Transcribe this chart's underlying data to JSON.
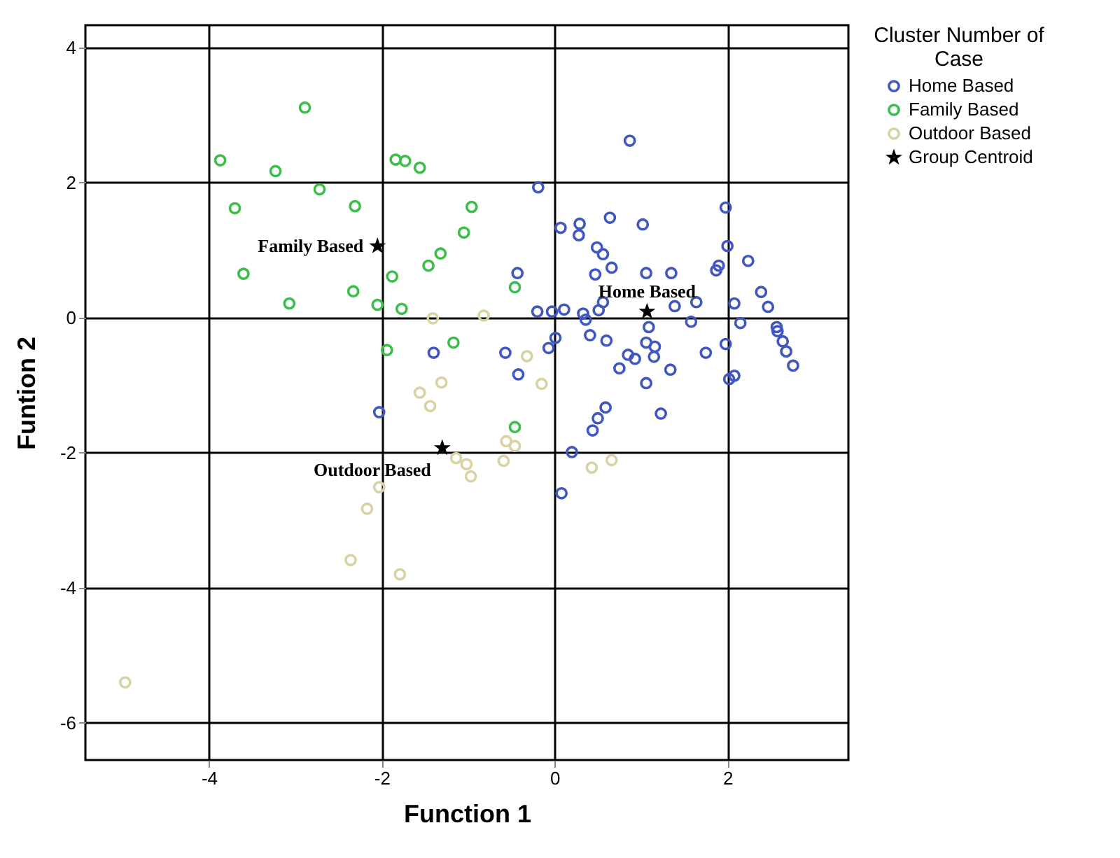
{
  "chart_data": {
    "type": "scatter",
    "xlabel": "Function 1",
    "ylabel": "Funtion 2",
    "legend_title": "Cluster Number of Case",
    "legend": "top right",
    "grid": true,
    "marker": "circle",
    "xlim": [
      -5.43,
      3.4
    ],
    "ylim": [
      -6.55,
      4.33
    ],
    "xticks": [
      -4,
      -2,
      0,
      2
    ],
    "yticks": [
      -6,
      -4,
      -2,
      0,
      2,
      4
    ],
    "series": [
      {
        "name": "Home Based",
        "color": "#4056c0",
        "x": [
          0.87,
          -0.19,
          1.98,
          0.07,
          0.29,
          0.28,
          0.64,
          1.02,
          0.49,
          0.56,
          0.66,
          0.47,
          2.0,
          1.9,
          1.87,
          2.24,
          1.06,
          1.35,
          2.39,
          2.47,
          1.39,
          1.64,
          2.08,
          -0.43,
          -0.2,
          -0.03,
          0.11,
          0.33,
          0.36,
          0.51,
          0.56,
          1.09,
          1.58,
          2.15,
          2.57,
          2.58,
          2.64,
          2.68,
          2.76,
          0.01,
          -0.07,
          0.41,
          0.6,
          1.06,
          1.16,
          1.15,
          0.85,
          0.93,
          0.75,
          1.34,
          1.75,
          1.98,
          1.06,
          2.02,
          2.08,
          0.59,
          0.5,
          0.44,
          1.23,
          -0.42,
          -0.57,
          -1.4,
          -2.03,
          0.2,
          0.08
        ],
        "values": [
          2.62,
          1.93,
          1.63,
          1.33,
          1.39,
          1.22,
          1.48,
          1.38,
          1.04,
          0.94,
          0.74,
          0.64,
          1.06,
          0.77,
          0.7,
          0.84,
          0.66,
          0.66,
          0.38,
          0.16,
          0.17,
          0.23,
          0.21,
          0.66,
          0.09,
          0.09,
          0.12,
          0.06,
          -0.03,
          0.11,
          0.23,
          -0.14,
          -0.06,
          -0.08,
          -0.14,
          -0.2,
          -0.35,
          -0.5,
          -0.71,
          -0.3,
          -0.45,
          -0.26,
          -0.34,
          -0.37,
          -0.43,
          -0.58,
          -0.55,
          -0.61,
          -0.75,
          -0.77,
          -0.52,
          -0.39,
          -0.97,
          -0.91,
          -0.86,
          -1.33,
          -1.49,
          -1.67,
          -1.42,
          -0.84,
          -0.52,
          -0.52,
          -1.4,
          -1.99,
          -2.6
        ]
      },
      {
        "name": "Family Based",
        "color": "#3cbf4a",
        "x": [
          -2.89,
          -3.87,
          -3.23,
          -1.84,
          -1.73,
          -1.56,
          -2.72,
          -3.7,
          -2.31,
          -0.96,
          -1.05,
          -1.32,
          -1.46,
          -3.6,
          -1.88,
          -0.46,
          -2.33,
          -3.07,
          -2.05,
          -1.77,
          -1.17,
          -1.94,
          -0.46
        ],
        "values": [
          3.11,
          2.33,
          2.17,
          2.34,
          2.32,
          2.22,
          1.9,
          1.62,
          1.65,
          1.64,
          1.26,
          0.95,
          0.77,
          0.65,
          0.61,
          0.45,
          0.39,
          0.21,
          0.19,
          0.13,
          -0.37,
          -0.48,
          -1.62
        ]
      },
      {
        "name": "Outdoor Based",
        "color": "#d8d2a4",
        "x": [
          -1.41,
          -0.82,
          -0.32,
          -0.15,
          -1.31,
          -1.56,
          -1.44,
          -0.56,
          -0.46,
          -0.59,
          -1.14,
          -1.02,
          -0.97,
          0.43,
          0.66,
          -2.03,
          -2.17,
          -2.36,
          -1.79,
          -4.97
        ],
        "values": [
          -0.01,
          0.03,
          -0.57,
          -0.98,
          -0.96,
          -1.11,
          -1.31,
          -1.83,
          -1.9,
          -2.12,
          -2.08,
          -2.17,
          -2.35,
          -2.22,
          -2.11,
          -2.51,
          -2.83,
          -3.59,
          -3.8,
          -5.4
        ]
      },
      {
        "name": "Group Centroid",
        "color": "#000000",
        "marker": "star",
        "x": [
          1.07,
          -2.05,
          -1.3
        ],
        "values": [
          0.09,
          1.06,
          -1.93
        ]
      }
    ],
    "annotations": [
      {
        "text": "Home Based",
        "x": 1.07,
        "y": 0.09
      },
      {
        "text": "Family Based",
        "x": -2.05,
        "y": 1.06
      },
      {
        "text": "Outdoor Based",
        "x": -1.3,
        "y": -1.93
      }
    ]
  }
}
